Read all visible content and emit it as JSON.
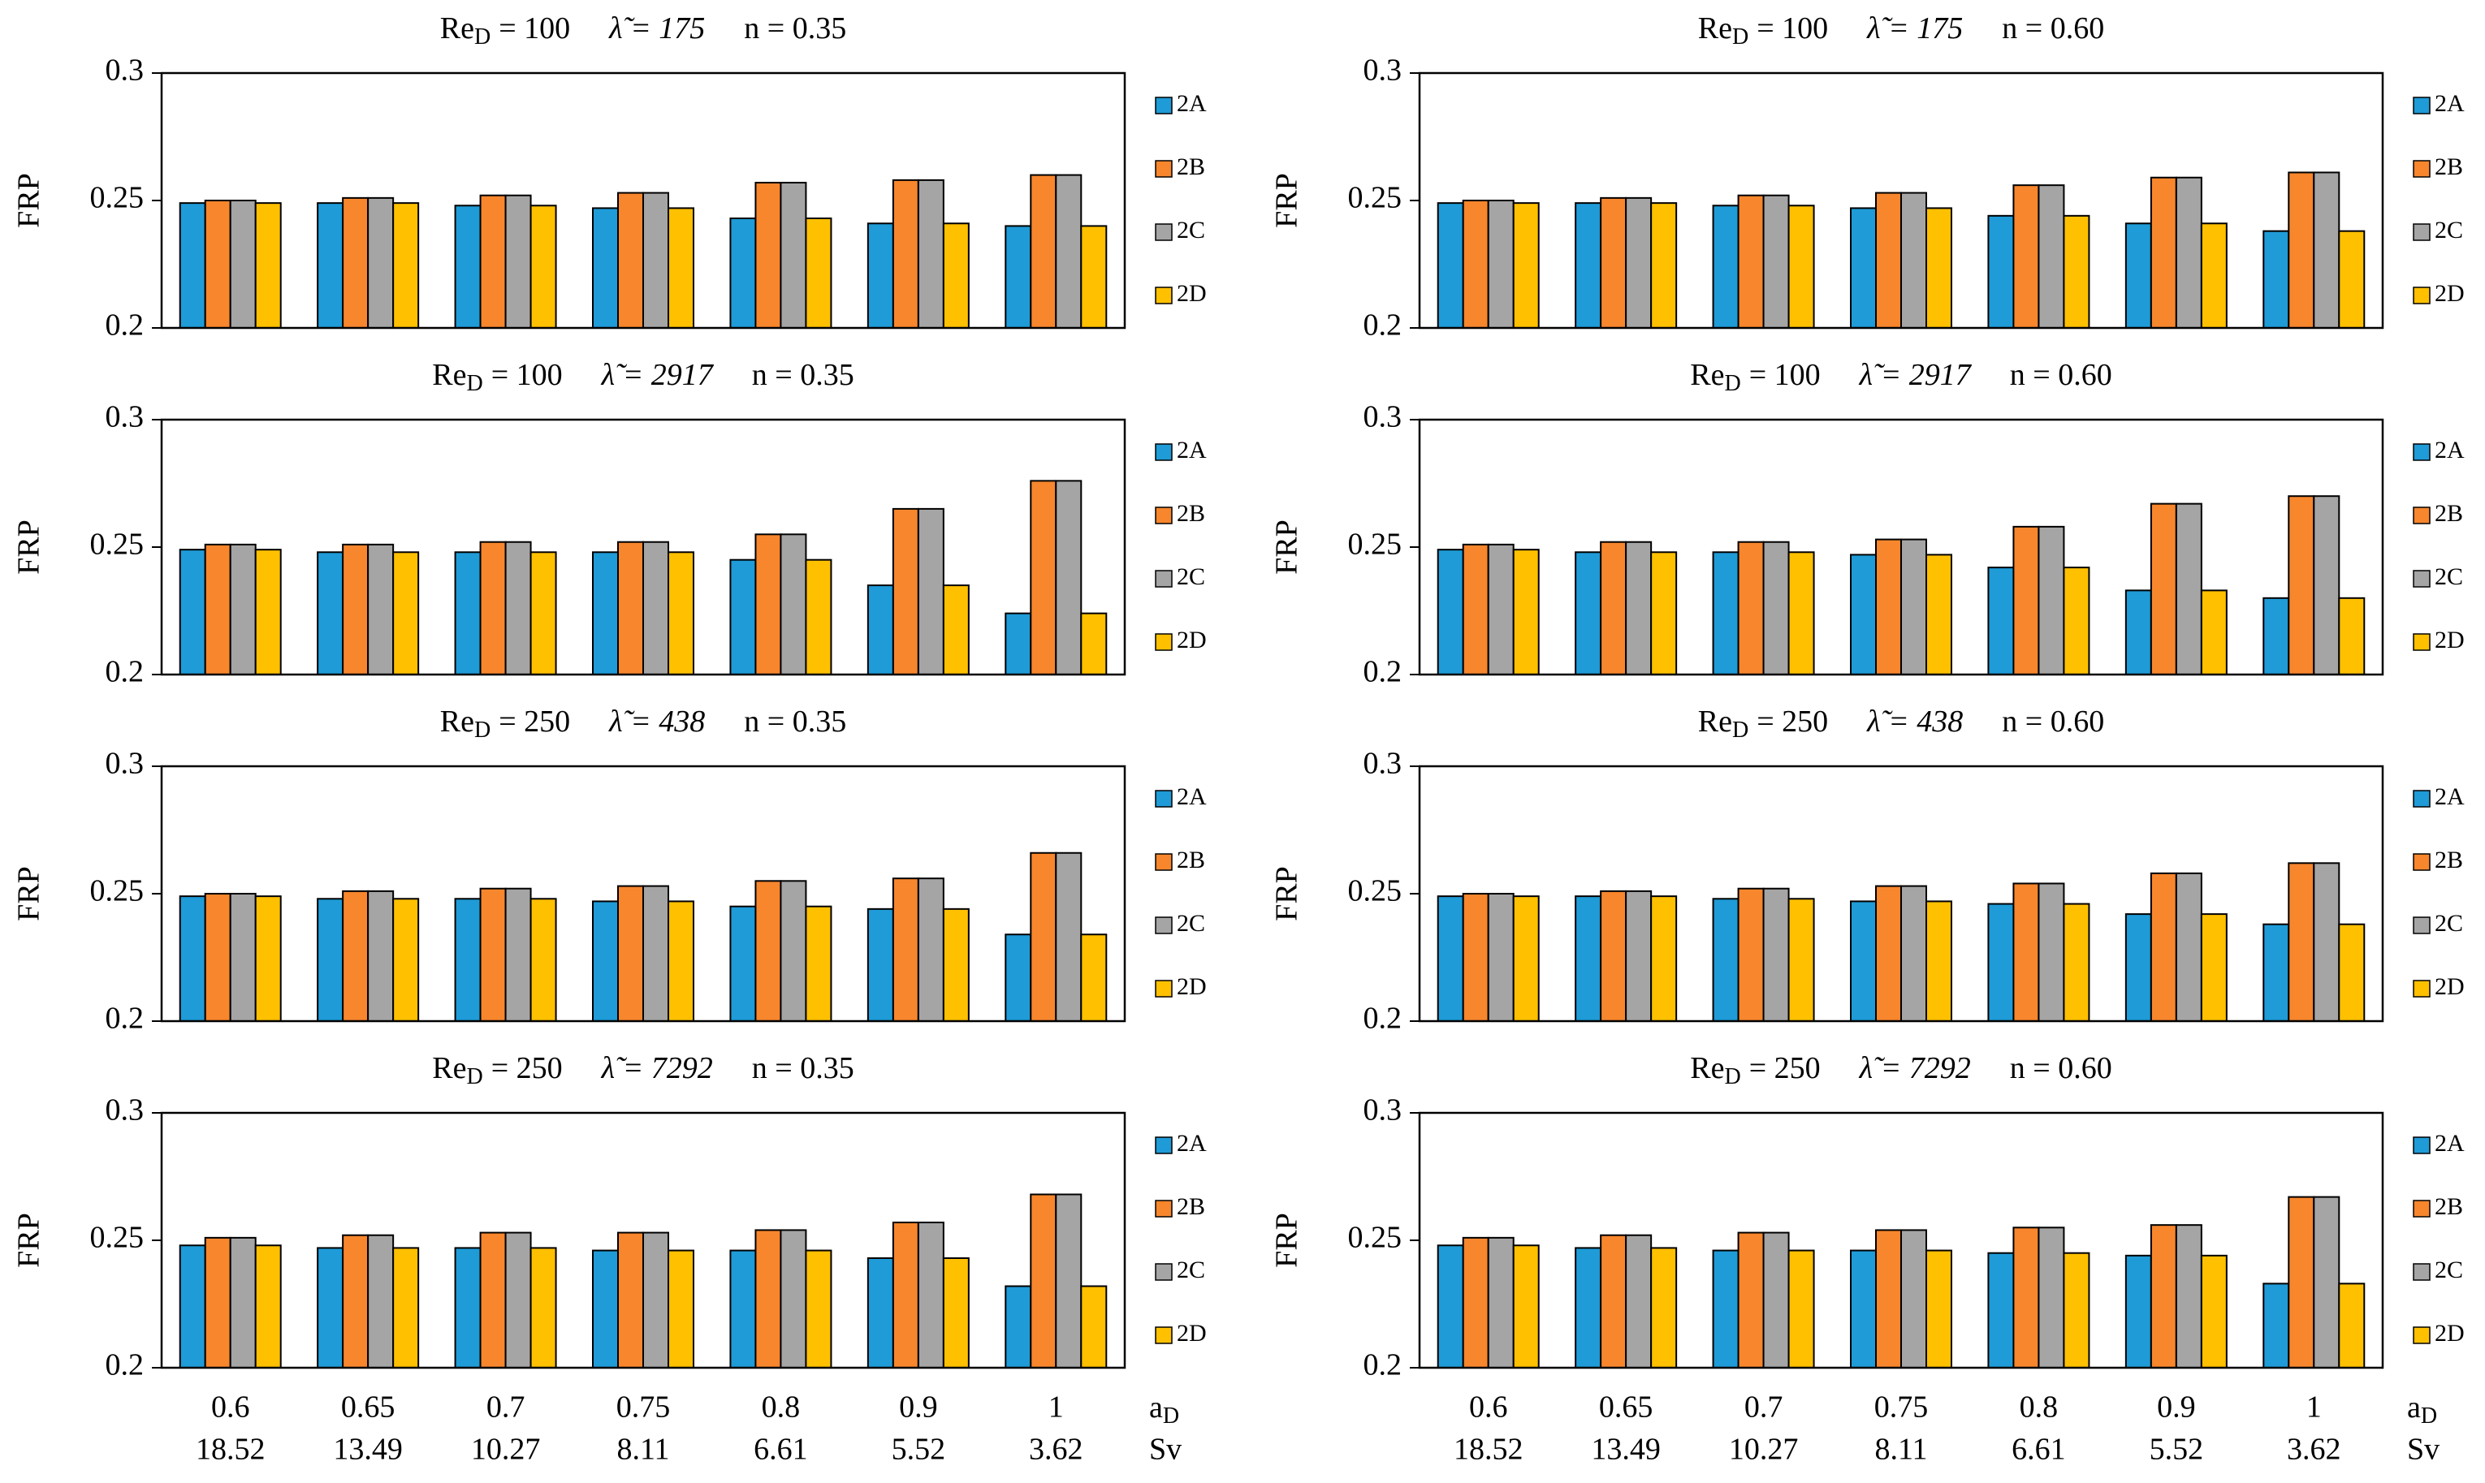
{
  "chart_data": [
    {
      "type": "bar",
      "title": [
        "Re",
        "D",
        "= 100",
        "λ̃ = 175",
        "n = 0.35"
      ],
      "y_label": "FRP",
      "ylim": [
        0.2,
        0.3
      ],
      "yticks": [
        0.2,
        0.25,
        0.3
      ],
      "categories": [
        null,
        null,
        null,
        null,
        null,
        null,
        null
      ],
      "series": [
        {
          "name": "2A",
          "color": "#1f9bd7",
          "values": [
            0.249,
            0.249,
            0.248,
            0.247,
            0.243,
            0.241,
            0.24
          ]
        },
        {
          "name": "2B",
          "color": "#f7862d",
          "values": [
            0.25,
            0.251,
            0.252,
            0.253,
            0.257,
            0.258,
            0.26
          ]
        },
        {
          "name": "2C",
          "color": "#a5a5a5",
          "values": [
            0.25,
            0.251,
            0.252,
            0.253,
            0.257,
            0.258,
            0.26
          ]
        },
        {
          "name": "2D",
          "color": "#ffc000",
          "values": [
            0.249,
            0.249,
            0.248,
            0.247,
            0.243,
            0.241,
            0.24
          ]
        }
      ]
    },
    {
      "type": "bar",
      "title": [
        "Re",
        "D",
        "= 100",
        "λ̃ = 175",
        "n = 0.60"
      ],
      "y_label": "FRP",
      "ylim": [
        0.2,
        0.3
      ],
      "yticks": [
        0.2,
        0.25,
        0.3
      ],
      "categories": [
        null,
        null,
        null,
        null,
        null,
        null,
        null
      ],
      "series": [
        {
          "name": "2A",
          "color": "#1f9bd7",
          "values": [
            0.249,
            0.249,
            0.248,
            0.247,
            0.244,
            0.241,
            0.238
          ]
        },
        {
          "name": "2B",
          "color": "#f7862d",
          "values": [
            0.25,
            0.251,
            0.252,
            0.253,
            0.256,
            0.259,
            0.261
          ]
        },
        {
          "name": "2C",
          "color": "#a5a5a5",
          "values": [
            0.25,
            0.251,
            0.252,
            0.253,
            0.256,
            0.259,
            0.261
          ]
        },
        {
          "name": "2D",
          "color": "#ffc000",
          "values": [
            0.249,
            0.249,
            0.248,
            0.247,
            0.244,
            0.241,
            0.238
          ]
        }
      ]
    },
    {
      "type": "bar",
      "title": [
        "Re",
        "D",
        "= 100",
        "λ̃ = 2917",
        "n = 0.35"
      ],
      "y_label": "FRP",
      "ylim": [
        0.2,
        0.3
      ],
      "yticks": [
        0.2,
        0.25,
        0.3
      ],
      "categories": [
        null,
        null,
        null,
        null,
        null,
        null,
        null
      ],
      "series": [
        {
          "name": "2A",
          "color": "#1f9bd7",
          "values": [
            0.249,
            0.248,
            0.248,
            0.248,
            0.245,
            0.235,
            0.224
          ]
        },
        {
          "name": "2B",
          "color": "#f7862d",
          "values": [
            0.251,
            0.251,
            0.252,
            0.252,
            0.255,
            0.265,
            0.276
          ]
        },
        {
          "name": "2C",
          "color": "#a5a5a5",
          "values": [
            0.251,
            0.251,
            0.252,
            0.252,
            0.255,
            0.265,
            0.276
          ]
        },
        {
          "name": "2D",
          "color": "#ffc000",
          "values": [
            0.249,
            0.248,
            0.248,
            0.248,
            0.245,
            0.235,
            0.224
          ]
        }
      ]
    },
    {
      "type": "bar",
      "title": [
        "Re",
        "D",
        "= 100",
        "λ̃ = 2917",
        "n = 0.60"
      ],
      "y_label": "FRP",
      "ylim": [
        0.2,
        0.3
      ],
      "yticks": [
        0.2,
        0.25,
        0.3
      ],
      "categories": [
        null,
        null,
        null,
        null,
        null,
        null,
        null
      ],
      "series": [
        {
          "name": "2A",
          "color": "#1f9bd7",
          "values": [
            0.249,
            0.248,
            0.248,
            0.247,
            0.242,
            0.233,
            0.23
          ]
        },
        {
          "name": "2B",
          "color": "#f7862d",
          "values": [
            0.251,
            0.252,
            0.252,
            0.253,
            0.258,
            0.267,
            0.27
          ]
        },
        {
          "name": "2C",
          "color": "#a5a5a5",
          "values": [
            0.251,
            0.252,
            0.252,
            0.253,
            0.258,
            0.267,
            0.27
          ]
        },
        {
          "name": "2D",
          "color": "#ffc000",
          "values": [
            0.249,
            0.248,
            0.248,
            0.247,
            0.242,
            0.233,
            0.23
          ]
        }
      ]
    },
    {
      "type": "bar",
      "title": [
        "Re",
        "D",
        "= 250",
        "λ̃ = 438",
        "n = 0.35"
      ],
      "y_label": "FRP",
      "ylim": [
        0.2,
        0.3
      ],
      "yticks": [
        0.2,
        0.25,
        0.3
      ],
      "categories": [
        null,
        null,
        null,
        null,
        null,
        null,
        null
      ],
      "series": [
        {
          "name": "2A",
          "color": "#1f9bd7",
          "values": [
            0.249,
            0.248,
            0.248,
            0.247,
            0.245,
            0.244,
            0.234
          ]
        },
        {
          "name": "2B",
          "color": "#f7862d",
          "values": [
            0.25,
            0.251,
            0.252,
            0.253,
            0.255,
            0.256,
            0.266
          ]
        },
        {
          "name": "2C",
          "color": "#a5a5a5",
          "values": [
            0.25,
            0.251,
            0.252,
            0.253,
            0.255,
            0.256,
            0.266
          ]
        },
        {
          "name": "2D",
          "color": "#ffc000",
          "values": [
            0.249,
            0.248,
            0.248,
            0.247,
            0.245,
            0.244,
            0.234
          ]
        }
      ]
    },
    {
      "type": "bar",
      "title": [
        "Re",
        "D",
        "= 250",
        "λ̃ = 438",
        "n = 0.60"
      ],
      "y_label": "FRP",
      "ylim": [
        0.2,
        0.3
      ],
      "yticks": [
        0.2,
        0.25,
        0.3
      ],
      "categories": [
        null,
        null,
        null,
        null,
        null,
        null,
        null
      ],
      "series": [
        {
          "name": "2A",
          "color": "#1f9bd7",
          "values": [
            0.249,
            0.249,
            0.248,
            0.247,
            0.246,
            0.242,
            0.238
          ]
        },
        {
          "name": "2B",
          "color": "#f7862d",
          "values": [
            0.25,
            0.251,
            0.252,
            0.253,
            0.254,
            0.258,
            0.262
          ]
        },
        {
          "name": "2C",
          "color": "#a5a5a5",
          "values": [
            0.25,
            0.251,
            0.252,
            0.253,
            0.254,
            0.258,
            0.262
          ]
        },
        {
          "name": "2D",
          "color": "#ffc000",
          "values": [
            0.249,
            0.249,
            0.248,
            0.247,
            0.246,
            0.242,
            0.238
          ]
        }
      ]
    },
    {
      "type": "bar",
      "title": [
        "Re",
        "D",
        "= 250",
        "λ̃ = 7292",
        "n = 0.35"
      ],
      "y_label": "FRP",
      "ylim": [
        0.2,
        0.3
      ],
      "yticks": [
        0.2,
        0.25,
        0.3
      ],
      "categories": [
        0.6,
        0.65,
        0.7,
        0.75,
        0.8,
        0.9,
        1
      ],
      "categories2": [
        18.52,
        13.49,
        10.27,
        8.11,
        6.61,
        5.52,
        3.62
      ],
      "x_label": [
        "a",
        "D"
      ],
      "x_label2": "Sv",
      "series": [
        {
          "name": "2A",
          "color": "#1f9bd7",
          "values": [
            0.248,
            0.247,
            0.247,
            0.246,
            0.246,
            0.243,
            0.232
          ]
        },
        {
          "name": "2B",
          "color": "#f7862d",
          "values": [
            0.251,
            0.252,
            0.253,
            0.253,
            0.254,
            0.257,
            0.268
          ]
        },
        {
          "name": "2C",
          "color": "#a5a5a5",
          "values": [
            0.251,
            0.252,
            0.253,
            0.253,
            0.254,
            0.257,
            0.268
          ]
        },
        {
          "name": "2D",
          "color": "#ffc000",
          "values": [
            0.248,
            0.247,
            0.247,
            0.246,
            0.246,
            0.243,
            0.232
          ]
        }
      ]
    },
    {
      "type": "bar",
      "title": [
        "Re",
        "D",
        "= 250",
        "λ̃ = 7292",
        "n = 0.60"
      ],
      "y_label": "FRP",
      "ylim": [
        0.2,
        0.3
      ],
      "yticks": [
        0.2,
        0.25,
        0.3
      ],
      "categories": [
        0.6,
        0.65,
        0.7,
        0.75,
        0.8,
        0.9,
        1
      ],
      "categories2": [
        18.52,
        13.49,
        10.27,
        8.11,
        6.61,
        5.52,
        3.62
      ],
      "x_label": [
        "a",
        "D"
      ],
      "x_label2": "Sv",
      "series": [
        {
          "name": "2A",
          "color": "#1f9bd7",
          "values": [
            0.248,
            0.247,
            0.246,
            0.246,
            0.245,
            0.244,
            0.233
          ]
        },
        {
          "name": "2B",
          "color": "#f7862d",
          "values": [
            0.251,
            0.252,
            0.253,
            0.254,
            0.255,
            0.256,
            0.267
          ]
        },
        {
          "name": "2C",
          "color": "#a5a5a5",
          "values": [
            0.251,
            0.252,
            0.253,
            0.254,
            0.255,
            0.256,
            0.267
          ]
        },
        {
          "name": "2D",
          "color": "#ffc000",
          "values": [
            0.248,
            0.247,
            0.246,
            0.246,
            0.245,
            0.244,
            0.233
          ]
        }
      ]
    }
  ]
}
